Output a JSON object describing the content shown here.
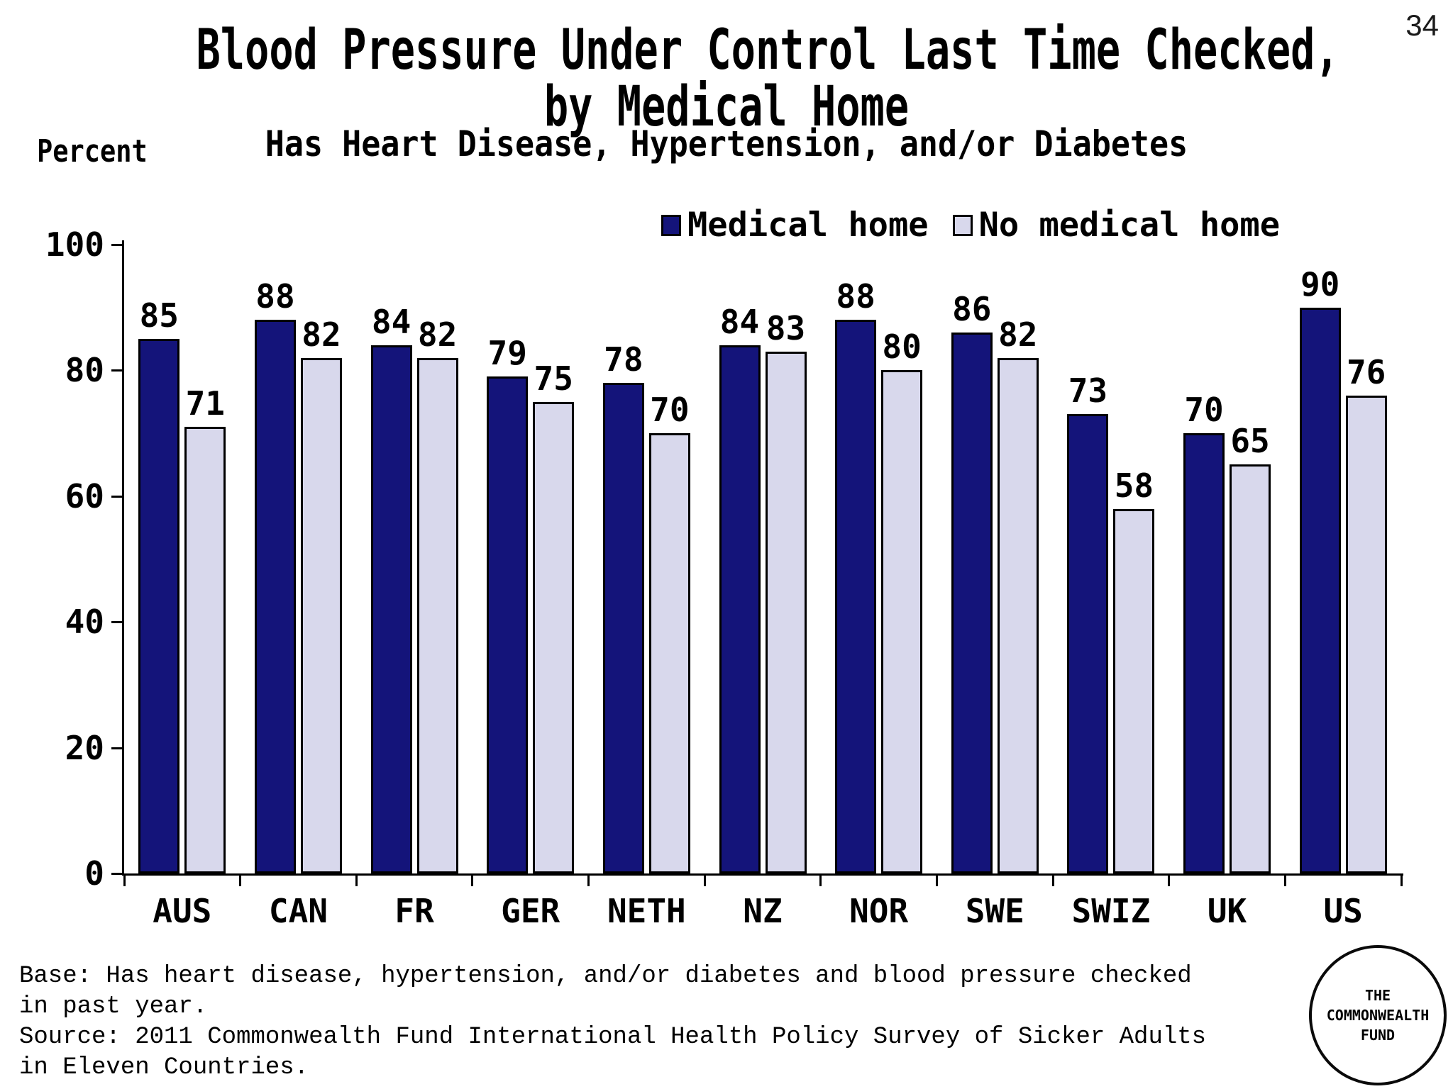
{
  "page_number": "34",
  "title": {
    "line1": "Blood Pressure Under Control Last Time Checked,",
    "line2": "by Medical Home",
    "subtitle": "Has Heart Disease, Hypertension, and/or Diabetes"
  },
  "y_axis_label": "Percent",
  "chart_data": {
    "type": "bar",
    "categories": [
      "AUS",
      "CAN",
      "FR",
      "GER",
      "NETH",
      "NZ",
      "NOR",
      "SWE",
      "SWIZ",
      "UK",
      "US"
    ],
    "series": [
      {
        "name": "Medical home",
        "color": "#14147A",
        "values": [
          85,
          88,
          84,
          79,
          78,
          84,
          88,
          86,
          73,
          70,
          90
        ]
      },
      {
        "name": "No medical home",
        "color": "#D8D8EC",
        "values": [
          71,
          82,
          82,
          75,
          70,
          83,
          80,
          82,
          58,
          65,
          76
        ]
      }
    ],
    "title": "Blood Pressure Under Control Last Time Checked, by Medical Home",
    "xlabel": "",
    "ylabel": "Percent",
    "ylim": [
      0,
      100
    ],
    "yticks": [
      0,
      20,
      40,
      60,
      80,
      100
    ],
    "grid": false,
    "value_labels": true,
    "legend_position": "top-right",
    "bar_border_color": "#000000"
  },
  "footer": {
    "base": "Base: Has heart disease, hypertension, and/or diabetes and blood pressure checked in past year.",
    "source": "Source: 2011 Commonwealth Fund International Health Policy Survey of Sicker Adults in Eleven Countries."
  },
  "logo": {
    "line1": "THE",
    "line2": "COMMONWEALTH",
    "line3": "FUND"
  }
}
